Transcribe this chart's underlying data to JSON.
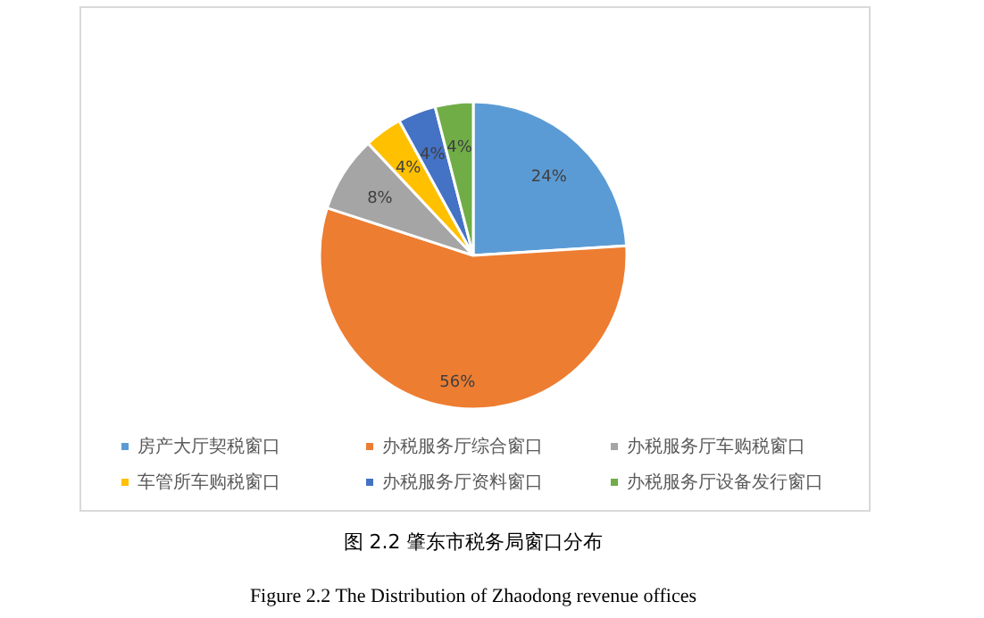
{
  "chart_data": {
    "type": "pie",
    "title": "图 2.2 肇东市税务局窗口分布",
    "subtitle": "Figure 2.2 The Distribution of Zhaodong revenue offices",
    "categories": [
      "房产大厅契税窗口",
      "办税服务厅综合窗口",
      "办税服务厅车购税窗口",
      "车管所车购税窗口",
      "办税服务厅资料窗口",
      "办税服务厅设备发行窗口"
    ],
    "values": [
      24,
      56,
      8,
      4,
      4,
      4
    ],
    "colors": [
      "#5b9bd5",
      "#ed7d31",
      "#a5a5a5",
      "#ffc000",
      "#4472c4",
      "#70ad47"
    ],
    "value_labels": [
      "24%",
      "56%",
      "8%",
      "4%",
      "4%",
      "4%"
    ],
    "legend": "bottom"
  }
}
